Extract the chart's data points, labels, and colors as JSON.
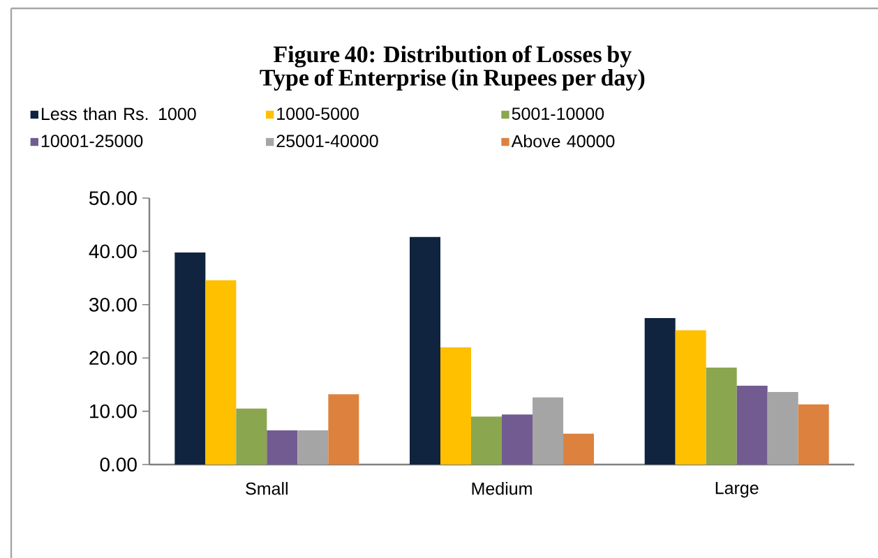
{
  "chart_data": {
    "type": "bar",
    "title": "Figure 40: Distribution of Losses by Type of Enterprise (in Rupees per day)",
    "categories": [
      "Small",
      "Medium",
      "Large"
    ],
    "series": [
      {
        "name": "Less than Rs. 1000",
        "color": "#10243f",
        "values": [
          39.8,
          42.7,
          27.5
        ]
      },
      {
        "name": "1000-5000",
        "color": "#ffc000",
        "values": [
          34.6,
          22.0,
          25.2
        ]
      },
      {
        "name": "5001-10000",
        "color": "#8aa64f",
        "values": [
          10.5,
          9.0,
          18.2
        ]
      },
      {
        "name": "10001-25000",
        "color": "#725b91",
        "values": [
          6.4,
          9.4,
          14.8
        ]
      },
      {
        "name": "25001-40000",
        "color": "#a5a5a5",
        "values": [
          6.4,
          12.6,
          13.6
        ]
      },
      {
        "name": "Above 40000",
        "color": "#dc823e",
        "values": [
          13.2,
          5.8,
          11.3
        ]
      }
    ],
    "ylim": [
      0,
      50
    ],
    "yticks": [
      {
        "value": 0,
        "label": "0.00"
      },
      {
        "value": 10,
        "label": "10.00"
      },
      {
        "value": 20,
        "label": "20.00"
      },
      {
        "value": 30,
        "label": "30.00"
      },
      {
        "value": 40,
        "label": "40.00"
      },
      {
        "value": 50,
        "label": "50.00"
      }
    ],
    "legend": "top",
    "grid": false
  }
}
